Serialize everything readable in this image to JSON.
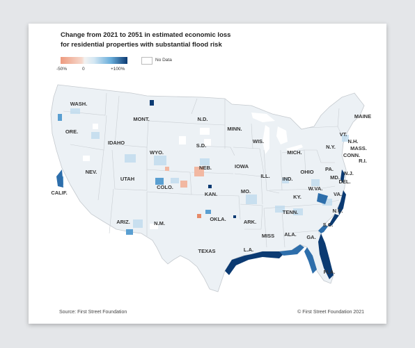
{
  "title_line1": "Change from 2021 to 2051 in estimated economic loss",
  "title_line2": "for residential properties with substantial flood risk",
  "legend": {
    "min_label": "-50%",
    "mid_label": "0",
    "max_label": "+100%",
    "nodata_label": "No Data",
    "color_low": "#ee9a7e",
    "color_neutral": "#f2f2f2",
    "color_high": "#0b3a72"
  },
  "states": [
    {
      "name": "WASH."
    },
    {
      "name": "ORE."
    },
    {
      "name": "CALIF."
    },
    {
      "name": "NEV."
    },
    {
      "name": "IDAHO"
    },
    {
      "name": "MONT."
    },
    {
      "name": "WYO."
    },
    {
      "name": "UTAH"
    },
    {
      "name": "ARIZ."
    },
    {
      "name": "COLO."
    },
    {
      "name": "N.M."
    },
    {
      "name": "N.D."
    },
    {
      "name": "S.D."
    },
    {
      "name": "NEB."
    },
    {
      "name": "KAN."
    },
    {
      "name": "OKLA."
    },
    {
      "name": "TEXAS"
    },
    {
      "name": "MINN."
    },
    {
      "name": "IOWA"
    },
    {
      "name": "MO."
    },
    {
      "name": "ARK."
    },
    {
      "name": "L.A."
    },
    {
      "name": "WIS."
    },
    {
      "name": "ILL."
    },
    {
      "name": "MICH."
    },
    {
      "name": "IND."
    },
    {
      "name": "OHIO"
    },
    {
      "name": "KY."
    },
    {
      "name": "TENN."
    },
    {
      "name": "MISS"
    },
    {
      "name": "ALA."
    },
    {
      "name": "GA."
    },
    {
      "name": "FLA."
    },
    {
      "name": "S.C."
    },
    {
      "name": "N.C."
    },
    {
      "name": "VA."
    },
    {
      "name": "W.VA."
    },
    {
      "name": "PA."
    },
    {
      "name": "MD."
    },
    {
      "name": "DEL."
    },
    {
      "name": "N.J."
    },
    {
      "name": "N.Y."
    },
    {
      "name": "CONN."
    },
    {
      "name": "R.I."
    },
    {
      "name": "MASS."
    },
    {
      "name": "VT."
    },
    {
      "name": "N.H."
    },
    {
      "name": "MAINE"
    }
  ],
  "source": "Source: First Street Foundation",
  "copyright": "© First Street Foundation 2021"
}
